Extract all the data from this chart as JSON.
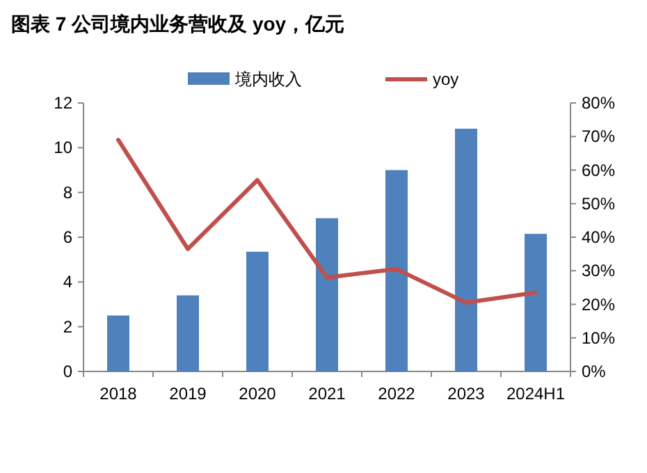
{
  "chart_data": {
    "type": "bar",
    "title": "图表 7 公司境内业务营收及 yoy，亿元",
    "categories": [
      "2018",
      "2019",
      "2020",
      "2021",
      "2022",
      "2023",
      "2024H1"
    ],
    "series": [
      {
        "name": "境内收入",
        "color": "#4f81bd",
        "values": [
          2.5,
          3.4,
          5.35,
          6.85,
          9.0,
          10.85,
          6.15
        ]
      },
      {
        "name": "yoy",
        "type": "line",
        "axis": "y2",
        "color": "#c0504d",
        "values": [
          69,
          36.5,
          57,
          28,
          30.5,
          20.5,
          23.5
        ]
      }
    ],
    "ylim": [
      0,
      12
    ],
    "yticks": [
      0,
      2,
      4,
      6,
      8,
      10,
      12
    ],
    "y2lim": [
      0,
      80
    ],
    "y2ticks": [
      {
        "value": 0,
        "label": "0%"
      },
      {
        "value": 10,
        "label": "10%"
      },
      {
        "value": 20,
        "label": "20%"
      },
      {
        "value": 30,
        "label": "30%"
      },
      {
        "value": 40,
        "label": "40%"
      },
      {
        "value": 50,
        "label": "50%"
      },
      {
        "value": 60,
        "label": "60%"
      },
      {
        "value": 70,
        "label": "70%"
      },
      {
        "value": 80,
        "label": "80%"
      }
    ],
    "legend": "top"
  }
}
